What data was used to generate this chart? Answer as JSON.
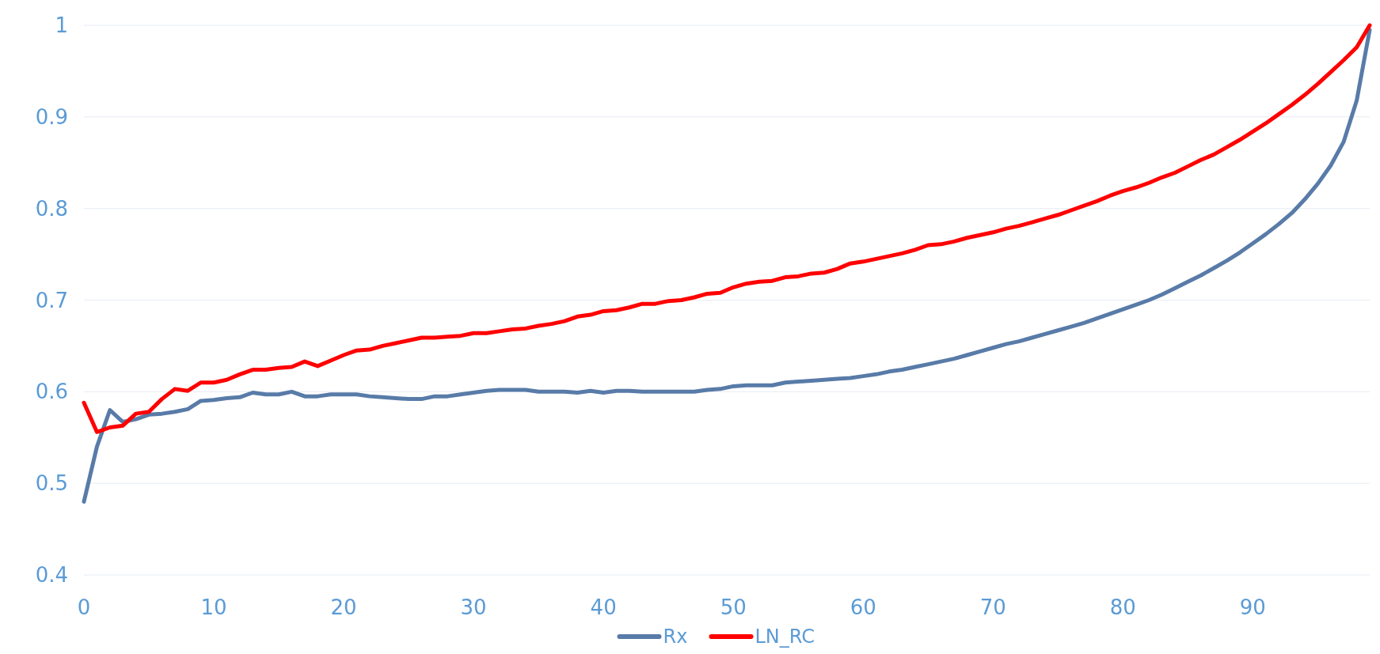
{
  "chart_data": {
    "type": "line",
    "x": [
      0,
      1,
      2,
      3,
      4,
      5,
      6,
      7,
      8,
      9,
      10,
      11,
      12,
      13,
      14,
      15,
      16,
      17,
      18,
      19,
      20,
      21,
      22,
      23,
      24,
      25,
      26,
      27,
      28,
      29,
      30,
      31,
      32,
      33,
      34,
      35,
      36,
      37,
      38,
      39,
      40,
      41,
      42,
      43,
      44,
      45,
      46,
      47,
      48,
      49,
      50,
      51,
      52,
      53,
      54,
      55,
      56,
      57,
      58,
      59,
      60,
      61,
      62,
      63,
      64,
      65,
      66,
      67,
      68,
      69,
      70,
      71,
      72,
      73,
      74,
      75,
      76,
      77,
      78,
      79,
      80,
      81,
      82,
      83,
      84,
      85,
      86,
      87,
      88,
      89,
      90,
      91,
      92,
      93,
      94,
      95,
      96,
      97,
      98,
      99
    ],
    "series": [
      {
        "name": "Rx",
        "color": "#587ba8",
        "values": [
          0.48,
          0.54,
          0.58,
          0.567,
          0.57,
          0.575,
          0.576,
          0.578,
          0.581,
          0.59,
          0.591,
          0.593,
          0.594,
          0.599,
          0.597,
          0.597,
          0.6,
          0.595,
          0.595,
          0.597,
          0.597,
          0.597,
          0.595,
          0.594,
          0.593,
          0.592,
          0.592,
          0.595,
          0.595,
          0.597,
          0.599,
          0.601,
          0.602,
          0.602,
          0.602,
          0.6,
          0.6,
          0.6,
          0.599,
          0.601,
          0.599,
          0.601,
          0.601,
          0.6,
          0.6,
          0.6,
          0.6,
          0.6,
          0.602,
          0.603,
          0.606,
          0.607,
          0.607,
          0.607,
          0.61,
          0.611,
          0.612,
          0.613,
          0.614,
          0.615,
          0.617,
          0.619,
          0.622,
          0.624,
          0.627,
          0.63,
          0.633,
          0.636,
          0.64,
          0.644,
          0.648,
          0.652,
          0.655,
          0.659,
          0.663,
          0.667,
          0.671,
          0.675,
          0.68,
          0.685,
          0.69,
          0.695,
          0.7,
          0.706,
          0.713,
          0.72,
          0.727,
          0.735,
          0.743,
          0.752,
          0.762,
          0.772,
          0.783,
          0.795,
          0.81,
          0.827,
          0.847,
          0.873,
          0.918,
          0.995
        ]
      },
      {
        "name": "LN_RC",
        "color": "#ff0000",
        "values": [
          0.588,
          0.556,
          0.561,
          0.563,
          0.576,
          0.578,
          0.592,
          0.603,
          0.601,
          0.61,
          0.61,
          0.613,
          0.619,
          0.624,
          0.624,
          0.626,
          0.627,
          0.633,
          0.628,
          0.634,
          0.64,
          0.645,
          0.646,
          0.65,
          0.653,
          0.656,
          0.659,
          0.659,
          0.66,
          0.661,
          0.664,
          0.664,
          0.666,
          0.668,
          0.669,
          0.672,
          0.674,
          0.677,
          0.682,
          0.684,
          0.688,
          0.689,
          0.692,
          0.696,
          0.696,
          0.699,
          0.7,
          0.703,
          0.707,
          0.708,
          0.714,
          0.718,
          0.72,
          0.721,
          0.725,
          0.726,
          0.729,
          0.73,
          0.734,
          0.74,
          0.742,
          0.745,
          0.748,
          0.751,
          0.755,
          0.76,
          0.761,
          0.764,
          0.768,
          0.771,
          0.774,
          0.778,
          0.781,
          0.785,
          0.789,
          0.793,
          0.798,
          0.803,
          0.808,
          0.814,
          0.819,
          0.823,
          0.828,
          0.834,
          0.839,
          0.846,
          0.853,
          0.859,
          0.867,
          0.875,
          0.884,
          0.893,
          0.903,
          0.913,
          0.924,
          0.936,
          0.949,
          0.962,
          0.976,
          1.0
        ]
      }
    ],
    "xlim": [
      0,
      99
    ],
    "xticks": [
      0,
      10,
      20,
      30,
      40,
      50,
      60,
      70,
      80,
      90
    ],
    "ylim": [
      0.4,
      1
    ],
    "yticks": [
      0.4,
      0.5,
      0.6,
      0.7,
      0.8,
      0.9,
      {
        "value": 1,
        "label": "1"
      }
    ],
    "grid": "y",
    "legend": "bottom",
    "marker": "none",
    "line_style": "solid"
  }
}
